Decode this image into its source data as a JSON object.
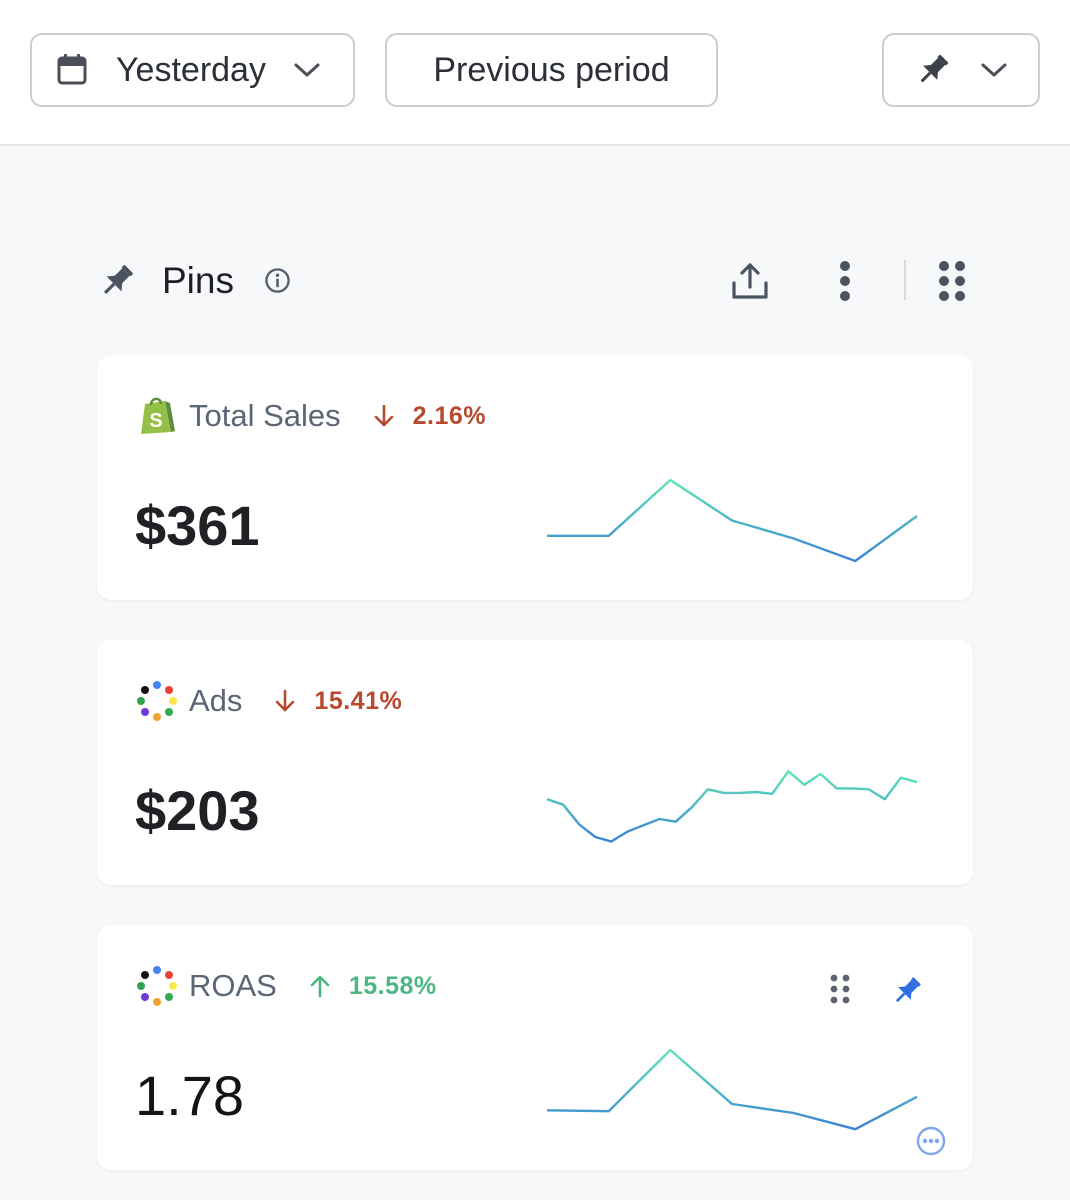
{
  "toolbar": {
    "date_range_label": "Yesterday",
    "compare_label": "Previous period",
    "date_icon": "calendar-icon",
    "pin_icon": "pin-icon"
  },
  "section": {
    "title": "Pins",
    "icons": [
      "pin-icon",
      "info-icon",
      "share-icon",
      "more-vertical-icon",
      "drag-grid-icon"
    ]
  },
  "cards": [
    {
      "source_icon": "shopify-logo",
      "name": "Total Sales",
      "delta": "2.16%",
      "direction": "down",
      "value": "$361",
      "trend": [
        0.38,
        0.38,
        1.0,
        0.55,
        0.35,
        0.1,
        0.6
      ]
    },
    {
      "source_icon": "multicolor-dots-logo",
      "name": "Ads",
      "delta": "15.41%",
      "direction": "down",
      "value": "$203",
      "trend": [
        0.62,
        0.56,
        0.34,
        0.2,
        0.15,
        0.26,
        0.33,
        0.4,
        0.37,
        0.53,
        0.73,
        0.69,
        0.69,
        0.7,
        0.68,
        0.93,
        0.78,
        0.9,
        0.74,
        0.74,
        0.73,
        0.62,
        0.86,
        0.81
      ]
    },
    {
      "source_icon": "multicolor-dots-logo",
      "name": "ROAS",
      "delta": "15.58%",
      "direction": "up",
      "value": "1.78",
      "trend": [
        0.33,
        0.32,
        1.0,
        0.4,
        0.3,
        0.12,
        0.48
      ]
    }
  ],
  "colors": {
    "down": "#b8492f",
    "up": "#4cb782",
    "trend_start": "#3b82d6",
    "trend_end": "#5ee6b6",
    "accent_pin": "#2f6fe0"
  }
}
